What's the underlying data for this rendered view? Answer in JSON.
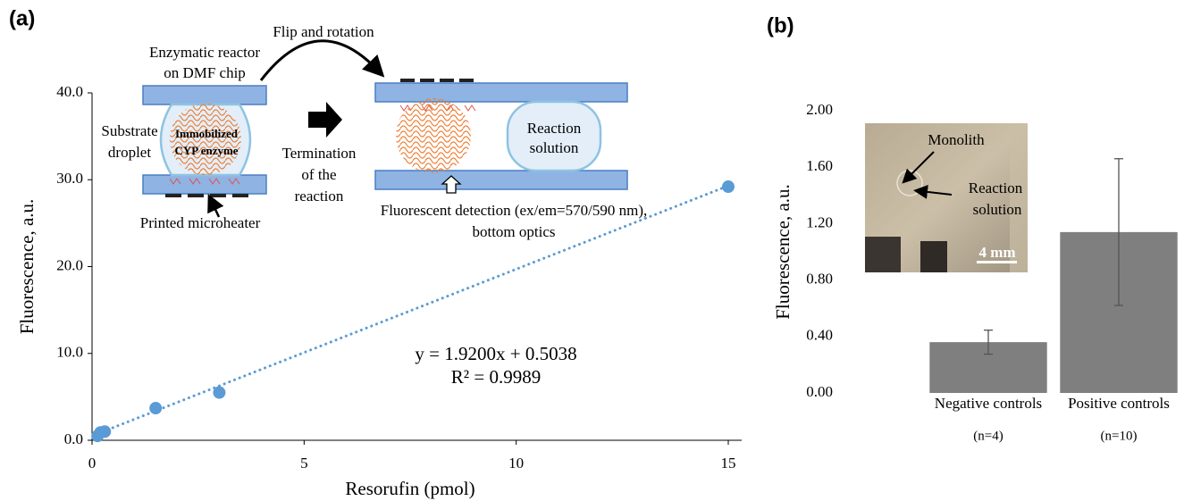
{
  "chart_data": [
    {
      "type": "scatter",
      "panel": "(a)",
      "xlabel": "Resorufin (pmol)",
      "ylabel": "Fluorescence, a.u.",
      "x": [
        0.13,
        0.2,
        0.3,
        1.5,
        3,
        15
      ],
      "values": [
        0.5,
        0.9,
        1.0,
        3.7,
        5.5,
        29.2
      ],
      "color": "#5b9bd5",
      "xlim": [
        0,
        15
      ],
      "xticks": [
        0,
        5,
        10,
        15
      ],
      "ylim": [
        0,
        40
      ],
      "yticks": [
        {
          "value": 0,
          "label": "0.0"
        },
        {
          "value": 10,
          "label": "10.0"
        },
        {
          "value": 20,
          "label": "20.0"
        },
        {
          "value": 30,
          "label": "30.0"
        },
        {
          "value": 40,
          "label": "40.0"
        }
      ],
      "trendline": {
        "slope": 1.92,
        "intercept": 0.5038,
        "equation": "y = 1.9200x + 0.5038",
        "r2": "R² = 0.9989"
      }
    },
    {
      "type": "bar",
      "panel": "(b)",
      "ylabel": "Fluorescence, a.u.",
      "categories": [
        "Negative controls",
        "Positive controls"
      ],
      "category_notes": [
        "(n=4)",
        "(n=10)"
      ],
      "values": [
        0.36,
        1.14
      ],
      "errors": [
        0.085,
        0.52
      ],
      "color": "#7f7f7f",
      "ylim": [
        0,
        2
      ],
      "yticks": [
        {
          "value": 0,
          "label": "0.00"
        },
        {
          "value": 0.4,
          "label": "0.40"
        },
        {
          "value": 0.8,
          "label": "0.80"
        },
        {
          "value": 1.2,
          "label": "1.20"
        },
        {
          "value": 1.6,
          "label": "1.60"
        },
        {
          "value": 2,
          "label": "2.00"
        }
      ]
    }
  ],
  "inset_a": {
    "labels": [
      "Flip and rotation",
      "Enzymatic reactor",
      "on DMF chip",
      "Substrate",
      "droplet",
      "Immobilized",
      "CYP enzyme",
      "Termination",
      "of the",
      "reaction",
      "Reaction",
      "solution",
      "Printed microheater",
      "Fluorescent detection (ex/em=570/590 nm),",
      "bottom optics"
    ]
  },
  "inset_b": {
    "labels": [
      "Monolith",
      "Reaction",
      "solution"
    ],
    "scale_bar": "4 mm"
  }
}
